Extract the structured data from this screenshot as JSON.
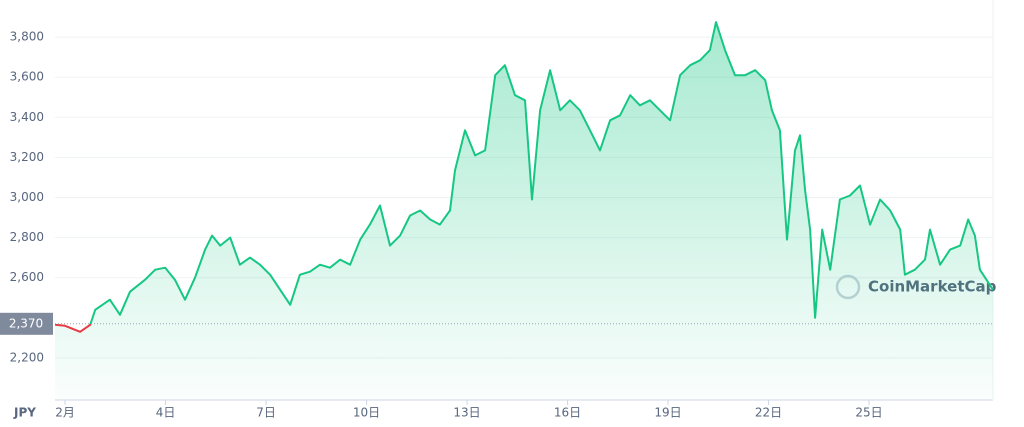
{
  "chart_data": {
    "type": "line",
    "x_label": "JPY",
    "watermark": "CoinMarketCap",
    "reference_line": {
      "value": 2370,
      "label": "2,370"
    },
    "up_color": "#16c784",
    "down_color": "#ea3943",
    "grid": true,
    "xlim": [
      0.7,
      28.7
    ],
    "xticks": [
      {
        "value": 1,
        "label": "2月"
      },
      {
        "value": 4,
        "label": "4日"
      },
      {
        "value": 7,
        "label": "7日"
      },
      {
        "value": 10,
        "label": "10日"
      },
      {
        "value": 13,
        "label": "13日"
      },
      {
        "value": 16,
        "label": "16日"
      },
      {
        "value": 19,
        "label": "19日"
      },
      {
        "value": 22,
        "label": "22日"
      },
      {
        "value": 25,
        "label": "25日"
      }
    ],
    "ylim": [
      1990,
      3985
    ],
    "yticks": [
      {
        "value": 2200,
        "label": "2,200"
      },
      {
        "value": 2600,
        "label": "2,600"
      },
      {
        "value": 2800,
        "label": "2,800"
      },
      {
        "value": 3000,
        "label": "3,000"
      },
      {
        "value": 3200,
        "label": "3,200"
      },
      {
        "value": 3400,
        "label": "3,400"
      },
      {
        "value": 3600,
        "label": "3,600"
      },
      {
        "value": 3800,
        "label": "3,800"
      }
    ],
    "x": [
      0.7,
      1.0,
      1.45,
      1.75,
      1.9,
      2.34,
      2.64,
      2.94,
      3.39,
      3.69,
      3.99,
      4.28,
      4.58,
      4.88,
      5.18,
      5.39,
      5.63,
      5.93,
      6.22,
      6.52,
      6.82,
      7.12,
      7.42,
      7.72,
      8.01,
      8.31,
      8.61,
      8.91,
      9.21,
      9.51,
      9.81,
      10.1,
      10.4,
      10.7,
      11.0,
      11.3,
      11.6,
      11.9,
      12.19,
      12.49,
      12.64,
      12.94,
      13.24,
      13.54,
      13.84,
      14.13,
      14.43,
      14.73,
      14.94,
      15.18,
      15.48,
      15.78,
      16.07,
      16.37,
      16.67,
      16.97,
      17.27,
      17.57,
      17.87,
      18.16,
      18.46,
      18.76,
      19.06,
      19.36,
      19.66,
      19.96,
      20.25,
      20.43,
      20.7,
      21.0,
      21.3,
      21.6,
      21.9,
      22.1,
      22.34,
      22.55,
      22.79,
      22.94,
      23.09,
      23.24,
      23.39,
      23.6,
      23.84,
      24.13,
      24.43,
      24.73,
      25.03,
      25.33,
      25.63,
      25.93,
      26.07,
      26.37,
      26.67,
      26.82,
      27.12,
      27.42,
      27.72,
      27.96,
      28.16,
      28.31,
      28.7
    ],
    "series": [
      {
        "name": "JPY",
        "values": [
          2365,
          2360,
          2330,
          2365,
          2440,
          2490,
          2415,
          2530,
          2590,
          2640,
          2650,
          2590,
          2490,
          2600,
          2740,
          2810,
          2760,
          2800,
          2665,
          2700,
          2665,
          2615,
          2540,
          2465,
          2615,
          2630,
          2665,
          2650,
          2690,
          2665,
          2790,
          2865,
          2960,
          2760,
          2810,
          2910,
          2935,
          2890,
          2865,
          2935,
          3135,
          3335,
          3210,
          3235,
          3610,
          3660,
          3510,
          3485,
          2990,
          3435,
          3635,
          3435,
          3485,
          3435,
          3335,
          3235,
          3385,
          3410,
          3510,
          3460,
          3485,
          3435,
          3385,
          3610,
          3660,
          3685,
          3735,
          3875,
          3735,
          3610,
          3610,
          3635,
          3585,
          3435,
          3335,
          2790,
          3235,
          3310,
          3035,
          2840,
          2400,
          2840,
          2640,
          2990,
          3010,
          3060,
          2865,
          2990,
          2935,
          2840,
          2615,
          2640,
          2690,
          2840,
          2665,
          2740,
          2760,
          2890,
          2810,
          2640,
          2540
        ]
      }
    ]
  }
}
